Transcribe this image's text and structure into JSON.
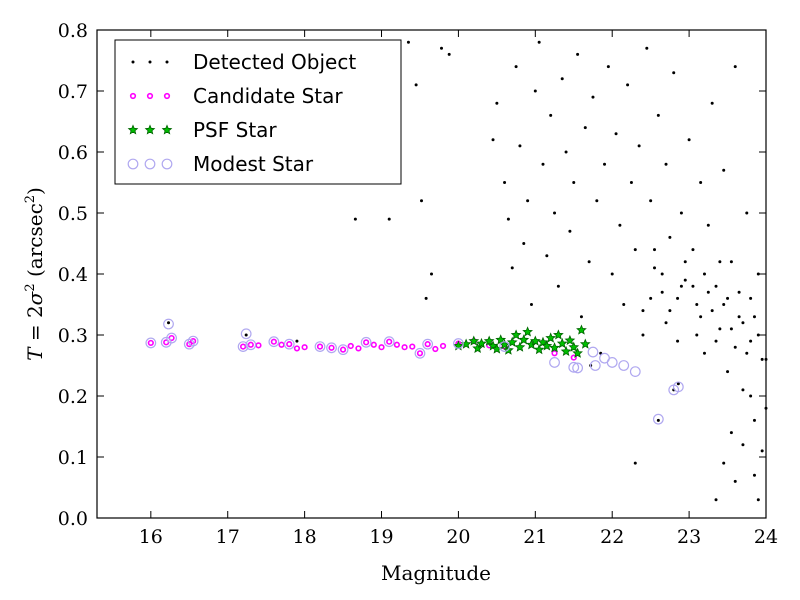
{
  "chart_data": {
    "type": "scatter",
    "xlabel": "Magnitude",
    "ylabel_parts": [
      "T",
      " = 2",
      "σ",
      "2",
      " (arcsec",
      "2",
      ")"
    ],
    "xlim": [
      15.3,
      24
    ],
    "ylim": [
      0.0,
      0.8
    ],
    "xticks": [
      16,
      17,
      18,
      19,
      20,
      21,
      22,
      23,
      24
    ],
    "yticks": [
      0.0,
      0.1,
      0.2,
      0.3,
      0.4,
      0.5,
      0.6,
      0.7,
      0.8
    ],
    "grid": false,
    "legend_position": "top-left",
    "colors": {
      "detected": "#000000",
      "candidate": "#ff00ff",
      "psf_face": "#00bf00",
      "psf_edge": "#006400",
      "modest": "#b0a8f0"
    },
    "series": [
      {
        "name": "Detected Object",
        "marker": "dot",
        "note": "dense cloud, approx.",
        "points": [
          [
            16.23,
            0.32
          ],
          [
            17.24,
            0.3
          ],
          [
            17.9,
            0.29
          ],
          [
            18.66,
            0.49
          ],
          [
            18.85,
            0.69
          ],
          [
            19.1,
            0.49
          ],
          [
            19.35,
            0.78
          ],
          [
            19.45,
            0.71
          ],
          [
            19.52,
            0.52
          ],
          [
            19.58,
            0.36
          ],
          [
            19.65,
            0.4
          ],
          [
            19.78,
            0.77
          ],
          [
            19.88,
            0.76
          ],
          [
            20.45,
            0.62
          ],
          [
            20.5,
            0.68
          ],
          [
            20.6,
            0.55
          ],
          [
            20.65,
            0.49
          ],
          [
            20.7,
            0.41
          ],
          [
            20.75,
            0.74
          ],
          [
            20.8,
            0.61
          ],
          [
            20.85,
            0.45
          ],
          [
            20.9,
            0.52
          ],
          [
            20.95,
            0.35
          ],
          [
            21.0,
            0.7
          ],
          [
            21.05,
            0.78
          ],
          [
            21.1,
            0.58
          ],
          [
            21.15,
            0.43
          ],
          [
            21.2,
            0.66
          ],
          [
            21.25,
            0.5
          ],
          [
            21.3,
            0.38
          ],
          [
            21.35,
            0.72
          ],
          [
            21.4,
            0.6
          ],
          [
            21.45,
            0.47
          ],
          [
            21.5,
            0.55
          ],
          [
            21.55,
            0.76
          ],
          [
            21.6,
            0.33
          ],
          [
            21.65,
            0.64
          ],
          [
            21.7,
            0.42
          ],
          [
            21.75,
            0.69
          ],
          [
            21.8,
            0.52
          ],
          [
            21.85,
            0.27
          ],
          [
            21.9,
            0.58
          ],
          [
            21.95,
            0.74
          ],
          [
            22.0,
            0.4
          ],
          [
            21.72,
            0.25
          ],
          [
            22.05,
            0.63
          ],
          [
            22.1,
            0.48
          ],
          [
            22.15,
            0.35
          ],
          [
            22.2,
            0.71
          ],
          [
            22.25,
            0.55
          ],
          [
            22.3,
            0.44
          ],
          [
            22.35,
            0.61
          ],
          [
            22.4,
            0.3
          ],
          [
            22.45,
            0.77
          ],
          [
            22.5,
            0.52
          ],
          [
            22.55,
            0.41
          ],
          [
            22.6,
            0.66
          ],
          [
            22.65,
            0.37
          ],
          [
            22.7,
            0.58
          ],
          [
            22.75,
            0.46
          ],
          [
            22.8,
            0.73
          ],
          [
            22.85,
            0.29
          ],
          [
            22.9,
            0.5
          ],
          [
            22.95,
            0.39
          ],
          [
            23.0,
            0.62
          ],
          [
            23.05,
            0.44
          ],
          [
            23.1,
            0.35
          ],
          [
            23.15,
            0.55
          ],
          [
            23.2,
            0.27
          ],
          [
            23.25,
            0.48
          ],
          [
            23.3,
            0.68
          ],
          [
            23.35,
            0.38
          ],
          [
            23.4,
            0.31
          ],
          [
            23.45,
            0.57
          ],
          [
            23.5,
            0.24
          ],
          [
            23.55,
            0.42
          ],
          [
            23.6,
            0.74
          ],
          [
            23.65,
            0.33
          ],
          [
            23.7,
            0.21
          ],
          [
            23.75,
            0.5
          ],
          [
            23.8,
            0.29
          ],
          [
            23.85,
            0.16
          ],
          [
            23.9,
            0.4
          ],
          [
            23.95,
            0.26
          ],
          [
            22.86,
            0.22
          ],
          [
            22.8,
            0.21
          ],
          [
            22.6,
            0.16
          ],
          [
            22.3,
            0.09
          ],
          [
            23.35,
            0.03
          ],
          [
            23.6,
            0.06
          ],
          [
            23.85,
            0.07
          ],
          [
            23.9,
            0.03
          ],
          [
            23.45,
            0.09
          ],
          [
            23.7,
            0.12
          ],
          [
            23.95,
            0.11
          ],
          [
            23.55,
            0.14
          ],
          [
            23.8,
            0.2
          ],
          [
            24.0,
            0.18
          ],
          [
            22.4,
            0.34
          ],
          [
            22.5,
            0.36
          ],
          [
            22.7,
            0.32
          ],
          [
            22.9,
            0.38
          ],
          [
            23.1,
            0.3
          ],
          [
            23.2,
            0.4
          ],
          [
            23.3,
            0.34
          ],
          [
            23.4,
            0.42
          ],
          [
            23.5,
            0.36
          ],
          [
            23.6,
            0.28
          ],
          [
            23.7,
            0.32
          ],
          [
            23.8,
            0.36
          ],
          [
            23.9,
            0.3
          ],
          [
            24.0,
            0.26
          ],
          [
            22.55,
            0.44
          ],
          [
            22.65,
            0.4
          ],
          [
            22.75,
            0.34
          ],
          [
            22.85,
            0.36
          ],
          [
            22.95,
            0.42
          ],
          [
            23.05,
            0.38
          ],
          [
            23.15,
            0.33
          ],
          [
            23.25,
            0.37
          ],
          [
            23.35,
            0.29
          ],
          [
            23.45,
            0.35
          ],
          [
            23.55,
            0.31
          ],
          [
            23.65,
            0.37
          ],
          [
            23.75,
            0.27
          ],
          [
            23.85,
            0.33
          ]
        ]
      },
      {
        "name": "Candidate Star",
        "marker": "circle-small",
        "points": [
          [
            16.0,
            0.287
          ],
          [
            16.2,
            0.288
          ],
          [
            16.27,
            0.295
          ],
          [
            16.5,
            0.285
          ],
          [
            16.55,
            0.29
          ],
          [
            17.2,
            0.281
          ],
          [
            17.3,
            0.284
          ],
          [
            17.4,
            0.283
          ],
          [
            17.6,
            0.289
          ],
          [
            17.7,
            0.284
          ],
          [
            17.8,
            0.285
          ],
          [
            17.9,
            0.278
          ],
          [
            18.0,
            0.28
          ],
          [
            18.2,
            0.281
          ],
          [
            18.35,
            0.279
          ],
          [
            18.5,
            0.276
          ],
          [
            18.6,
            0.282
          ],
          [
            18.7,
            0.278
          ],
          [
            18.8,
            0.288
          ],
          [
            18.9,
            0.284
          ],
          [
            19.0,
            0.28
          ],
          [
            19.1,
            0.289
          ],
          [
            19.2,
            0.284
          ],
          [
            19.3,
            0.28
          ],
          [
            19.4,
            0.281
          ],
          [
            19.5,
            0.27
          ],
          [
            19.6,
            0.285
          ],
          [
            19.7,
            0.277
          ],
          [
            19.8,
            0.282
          ],
          [
            20.0,
            0.286
          ],
          [
            20.2,
            0.29
          ],
          [
            20.4,
            0.283
          ],
          [
            20.6,
            0.281
          ],
          [
            21.25,
            0.27
          ],
          [
            21.5,
            0.263
          ]
        ]
      },
      {
        "name": "PSF Star",
        "marker": "star",
        "points": [
          [
            20.0,
            0.282
          ],
          [
            20.1,
            0.285
          ],
          [
            20.2,
            0.29
          ],
          [
            20.25,
            0.278
          ],
          [
            20.3,
            0.286
          ],
          [
            20.4,
            0.29
          ],
          [
            20.45,
            0.282
          ],
          [
            20.5,
            0.277
          ],
          [
            20.55,
            0.292
          ],
          [
            20.6,
            0.284
          ],
          [
            20.65,
            0.275
          ],
          [
            20.7,
            0.288
          ],
          [
            20.75,
            0.3
          ],
          [
            20.8,
            0.28
          ],
          [
            20.85,
            0.292
          ],
          [
            20.9,
            0.305
          ],
          [
            20.95,
            0.284
          ],
          [
            21.0,
            0.29
          ],
          [
            21.05,
            0.276
          ],
          [
            21.1,
            0.288
          ],
          [
            21.15,
            0.282
          ],
          [
            21.2,
            0.295
          ],
          [
            21.25,
            0.279
          ],
          [
            21.3,
            0.3
          ],
          [
            21.35,
            0.286
          ],
          [
            21.4,
            0.273
          ],
          [
            21.45,
            0.291
          ],
          [
            21.5,
            0.28
          ],
          [
            21.55,
            0.27
          ],
          [
            21.6,
            0.308
          ],
          [
            21.65,
            0.285
          ]
        ]
      },
      {
        "name": "Modest Star",
        "marker": "circle-open",
        "points": [
          [
            16.0,
            0.287
          ],
          [
            16.2,
            0.288
          ],
          [
            16.23,
            0.318
          ],
          [
            16.27,
            0.295
          ],
          [
            16.5,
            0.285
          ],
          [
            16.55,
            0.29
          ],
          [
            17.2,
            0.281
          ],
          [
            17.24,
            0.302
          ],
          [
            17.3,
            0.284
          ],
          [
            17.6,
            0.289
          ],
          [
            17.8,
            0.285
          ],
          [
            18.2,
            0.281
          ],
          [
            18.35,
            0.279
          ],
          [
            18.5,
            0.276
          ],
          [
            18.8,
            0.288
          ],
          [
            19.1,
            0.289
          ],
          [
            19.5,
            0.27
          ],
          [
            19.6,
            0.285
          ],
          [
            20.0,
            0.286
          ],
          [
            20.6,
            0.281
          ],
          [
            21.25,
            0.255
          ],
          [
            21.5,
            0.247
          ],
          [
            21.55,
            0.246
          ],
          [
            21.75,
            0.272
          ],
          [
            21.78,
            0.25
          ],
          [
            21.9,
            0.262
          ],
          [
            22.0,
            0.255
          ],
          [
            22.15,
            0.25
          ],
          [
            22.3,
            0.24
          ],
          [
            22.6,
            0.162
          ],
          [
            22.8,
            0.21
          ],
          [
            22.86,
            0.215
          ]
        ]
      }
    ]
  }
}
